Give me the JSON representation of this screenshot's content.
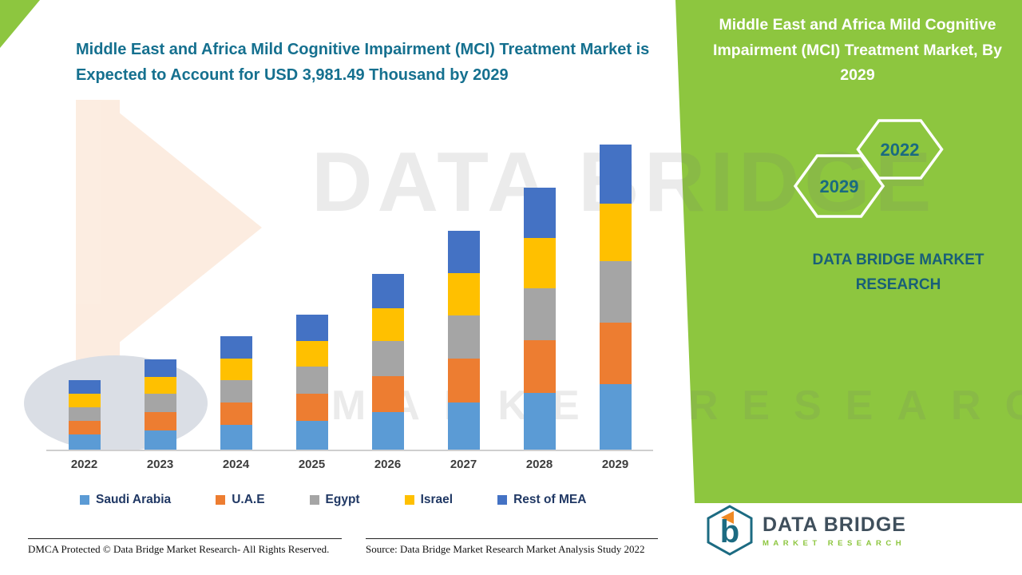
{
  "header": {
    "title": "Middle East and Africa Mild Cognitive Impairment (MCI) Treatment Market is Expected to Account for USD 3,981.49 Thousand by 2029"
  },
  "side_panel": {
    "title": "Middle East and Africa Mild Cognitive Impairment (MCI) Treatment Market, By 2029",
    "hexagon_top_year": "2022",
    "hexagon_bottom_year": "2029",
    "brand_line1": "DATA BRIDGE MARKET",
    "brand_line2": "RESEARCH",
    "panel_color": "#8dc63f",
    "year_text_color": "#1a6b80"
  },
  "watermark": {
    "line1": "DATA BRIDGE",
    "line2": "MARKET RESEARCH"
  },
  "chart_data": {
    "type": "bar",
    "stacked": true,
    "title": "Middle East and Africa Mild Cognitive Impairment (MCI) Treatment Market",
    "value_unit": "USD Thousand",
    "total_2029": 3981.49,
    "categories": [
      "2022",
      "2023",
      "2024",
      "2025",
      "2026",
      "2027",
      "2028",
      "2029"
    ],
    "series": [
      {
        "name": "Saudi Arabia",
        "color": "#5b9bd5",
        "values": [
          195,
          255,
          320,
          380,
          495,
          615,
          740,
          860
        ]
      },
      {
        "name": "U.A.E",
        "color": "#ed7d31",
        "values": [
          180,
          235,
          295,
          350,
          460,
          570,
          685,
          800
        ]
      },
      {
        "name": "Egypt",
        "color": "#a5a5a5",
        "values": [
          180,
          235,
          295,
          350,
          460,
          570,
          685,
          800
        ]
      },
      {
        "name": "Israel",
        "color": "#ffc000",
        "values": [
          175,
          225,
          280,
          335,
          435,
          545,
          650,
          755
        ]
      },
      {
        "name": "Rest of MEA",
        "color": "#4472c4",
        "values": [
          176,
          227,
          290,
          346,
          443,
          555,
          658,
          766.49
        ]
      }
    ],
    "totals": [
      906,
      1177,
      1480,
      1761,
      2293,
      2855,
      3418,
      3981.49
    ],
    "ylim": [
      0,
      4400
    ],
    "grid": false,
    "legend_position": "bottom"
  },
  "logo": {
    "name": "DATA BRIDGE",
    "subtext": "MARKET RESEARCH",
    "mark_letter": "b"
  },
  "footer": {
    "left": "DMCA Protected © Data Bridge Market Research- All Rights Reserved.",
    "source": "Source: Data Bridge Market Research Market Analysis Study 2022"
  }
}
